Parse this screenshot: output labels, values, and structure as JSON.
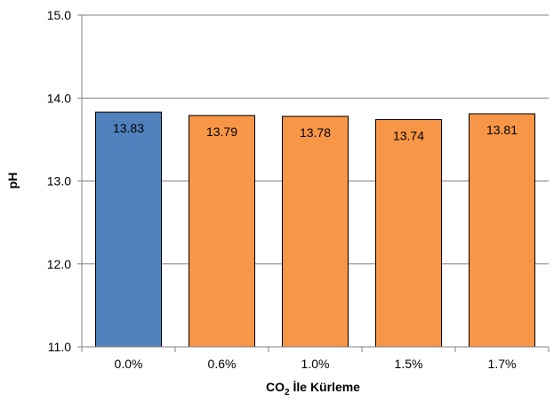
{
  "chart_data": {
    "type": "bar",
    "title": "",
    "xlabel": {
      "main": "CO",
      "subscript": "2",
      "rest": " İle Kürleme"
    },
    "ylabel": "pH",
    "categories": [
      "0.0%",
      "0.6%",
      "1.0%",
      "1.5%",
      "1.7%"
    ],
    "values": [
      13.83,
      13.79,
      13.78,
      13.74,
      13.81
    ],
    "value_labels": [
      "13.83",
      "13.79",
      "13.78",
      "13.74",
      "13.81"
    ],
    "ylim": [
      11.0,
      15.0
    ],
    "yticks": [
      11.0,
      12.0,
      13.0,
      14.0,
      15.0
    ],
    "ytick_labels": [
      "11.0",
      "12.0",
      "13.0",
      "14.0",
      "15.0"
    ],
    "grid": true,
    "bar_colors": [
      "#4f81bd",
      "#f79646",
      "#f79646",
      "#f79646",
      "#f79646"
    ],
    "bar_border": "#000000",
    "grid_color": "#808080"
  }
}
